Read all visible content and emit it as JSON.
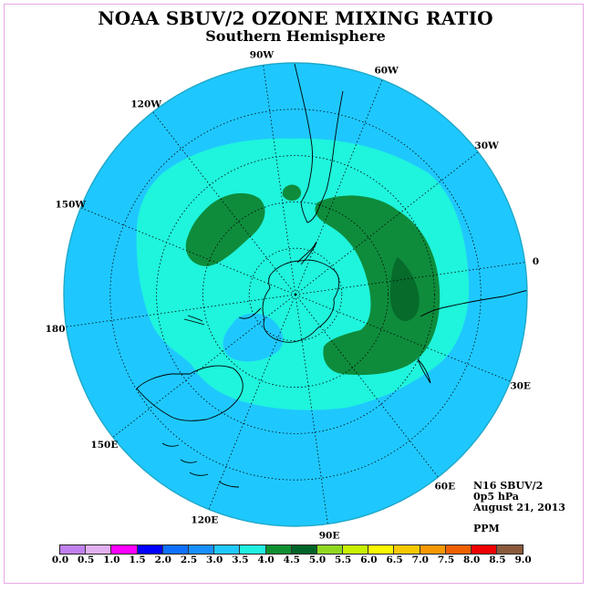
{
  "title": "NOAA SBUV/2 OZONE MIXING RATIO",
  "subtitle": "Southern Hemisphere",
  "longitude_labels": [
    "90W",
    "60W",
    "30W",
    "0",
    "30E",
    "60E",
    "90E",
    "120E",
    "150E",
    "180",
    "150W",
    "120W"
  ],
  "info": {
    "instrument": "N16 SBUV/2",
    "level": "0p5 hPa",
    "date": "August 21, 2013"
  },
  "units": "PPM",
  "colorbar": {
    "colors": [
      "#c080f0",
      "#e0b0f0",
      "#ff00ff",
      "#0000ff",
      "#1070ff",
      "#1890ff",
      "#20c8ff",
      "#20f0e0",
      "#109030",
      "#006428",
      "#90d820",
      "#c8f000",
      "#f8f800",
      "#f8c800",
      "#f89800",
      "#f06000",
      "#f00000",
      "#8b5a3c"
    ],
    "ticks": [
      "0.0",
      "0.5",
      "1.0",
      "1.5",
      "2.0",
      "2.5",
      "3.0",
      "3.5",
      "4.0",
      "4.5",
      "5.0",
      "5.5",
      "6.0",
      "6.5",
      "7.0",
      "7.5",
      "8.0",
      "8.5",
      "9.0"
    ]
  },
  "field_colors": {
    "background": "#1ec8ff",
    "band_3_5_4_0": "#1ff4dc",
    "band_4_0_4_5": "#0e8c3c",
    "band_4_5_5_0": "#066b2b",
    "disk_outline": "#20a8c8"
  }
}
